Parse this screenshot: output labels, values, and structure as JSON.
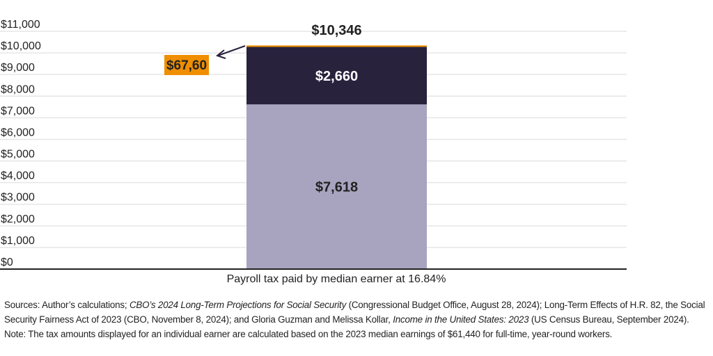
{
  "chart_data": {
    "type": "bar",
    "stacked": true,
    "categories": [
      "Payroll tax paid by median earner at 16.84%"
    ],
    "xlabel": "Payroll tax paid by median earner at 16.84%",
    "ylim": [
      0,
      11000
    ],
    "yticks": [
      "$0",
      "$1,000",
      "$2,000",
      "$3,000",
      "$4,000",
      "$5,000",
      "$6,000",
      "$7,000",
      "$8,000",
      "$9,000",
      "$10,000",
      "$11,000"
    ],
    "grid": true,
    "series": [
      {
        "values": [
          7618
        ],
        "label": "$7,618",
        "color": "#a8a4bf",
        "label_color": "#222222"
      },
      {
        "values": [
          2660
        ],
        "label": "$2,660",
        "color": "#28223d",
        "label_color": "#ffffff"
      },
      {
        "values": [
          67.6
        ],
        "label": "$67,60",
        "color": "#ef8e00",
        "label_color": "#222222"
      }
    ],
    "total_label": "$10,346"
  },
  "notes": {
    "sources_prefix": "Sources: Author’s calculations; ",
    "sources_italic1": "CBO’s 2024 Long-Term Projections for Social Security",
    "sources_mid": " (Congressional Budget Office, August 28, 2024); Long-Term Effects of H.R. 82, the Social Security Fairness Act of 2023 (CBO, November 8, 2024); and Gloria Guzman and Melissa Kollar, ",
    "sources_italic2": "Income in the United States: 2023",
    "sources_suffix": " (US Census Bureau, September 2024).",
    "note": "Note: The tax amounts displayed for an individual earner are calculated based on the 2023 median earnings of $61,440 for full-time, year-round workers."
  }
}
